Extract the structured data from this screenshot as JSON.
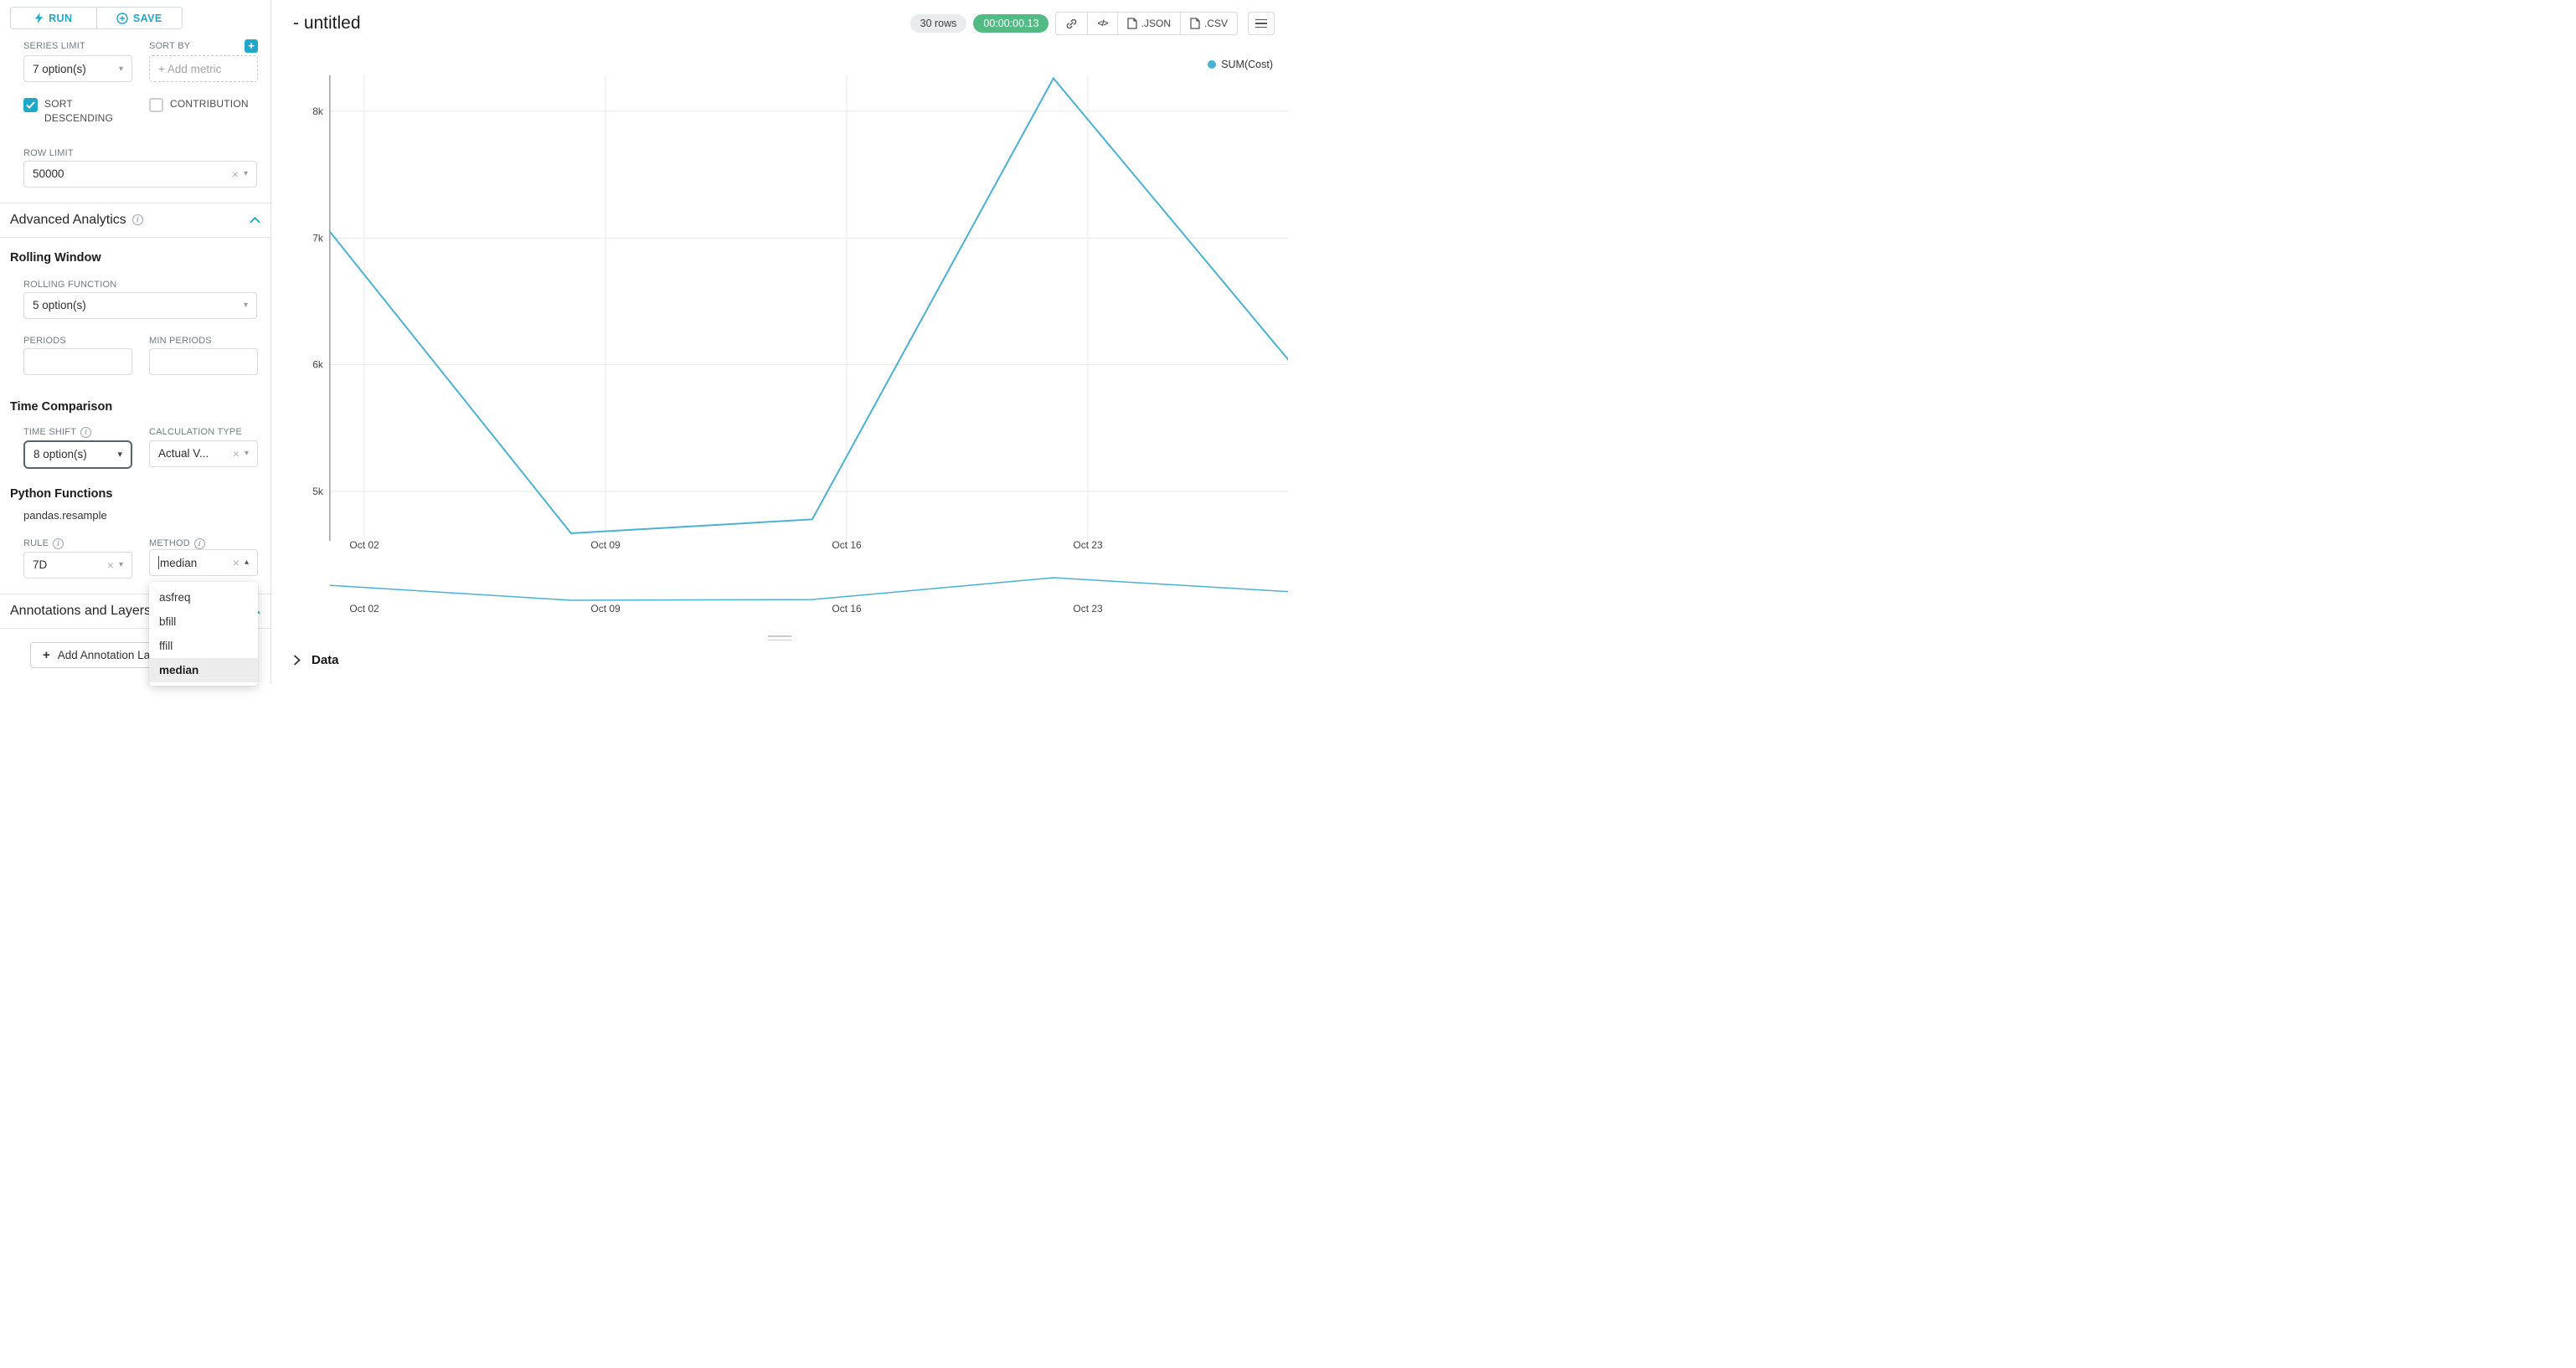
{
  "accent_color": "#20a7c9",
  "toolbar": {
    "run_label": "RUN",
    "save_label": "SAVE"
  },
  "controls": {
    "series_limit": {
      "label": "SERIES LIMIT",
      "value": "7 option(s)"
    },
    "sort_by": {
      "label": "SORT BY",
      "placeholder": "+ Add metric"
    },
    "sort_descending_label": "SORT DESCENDING",
    "contribution_label": "CONTRIBUTION",
    "row_limit": {
      "label": "ROW LIMIT",
      "value": "50000"
    }
  },
  "advanced_analytics": {
    "title": "Advanced Analytics",
    "rolling_window_title": "Rolling Window",
    "rolling_function": {
      "label": "ROLLING FUNCTION",
      "value": "5 option(s)"
    },
    "periods_label": "PERIODS",
    "min_periods_label": "MIN PERIODS",
    "time_comparison_title": "Time Comparison",
    "time_shift": {
      "label": "TIME SHIFT",
      "value": "8 option(s)"
    },
    "calculation_type": {
      "label": "CALCULATION TYPE",
      "value": "Actual V..."
    },
    "python_functions_title": "Python Functions",
    "pandas_resample_label": "pandas.resample",
    "rule": {
      "label": "RULE",
      "value": "7D"
    },
    "method": {
      "label": "METHOD",
      "value": "median",
      "options": [
        "asfreq",
        "bfill",
        "ffill",
        "median"
      ],
      "selected_option": "median"
    }
  },
  "annotations": {
    "title": "Annotations and Layers",
    "add_button_label": "Add Annotation Layer"
  },
  "header": {
    "title": "- untitled",
    "row_count_badge": "30 rows",
    "timer_badge": "00:00:00.13",
    "json_button": ".JSON",
    "csv_button": ".CSV"
  },
  "data_panel_label": "Data",
  "chart_data": {
    "type": "line",
    "title": "",
    "legend": [
      "SUM(Cost)"
    ],
    "legend_position": "top-right",
    "grid": true,
    "x_domain_days": [
      0,
      28
    ],
    "y_domain": [
      4650,
      8290
    ],
    "x_ticks": [
      {
        "day": 1,
        "label": "Oct 02"
      },
      {
        "day": 8,
        "label": "Oct 09"
      },
      {
        "day": 15,
        "label": "Oct 16"
      },
      {
        "day": 22,
        "label": "Oct 23"
      }
    ],
    "y_ticks": [
      {
        "value": 8000,
        "label": "8k"
      },
      {
        "value": 7000,
        "label": "7k"
      },
      {
        "value": 6000,
        "label": "6k"
      },
      {
        "value": 5000,
        "label": "5k"
      }
    ],
    "series": [
      {
        "name": "SUM(Cost)",
        "x_days": [
          0,
          7,
          14,
          21,
          28
        ],
        "values": [
          7050,
          4670,
          4780,
          8260,
          5980
        ]
      }
    ],
    "ylabel": "",
    "xlabel": "",
    "line_color": "#4ab1d4",
    "has_mini_preview": true
  }
}
